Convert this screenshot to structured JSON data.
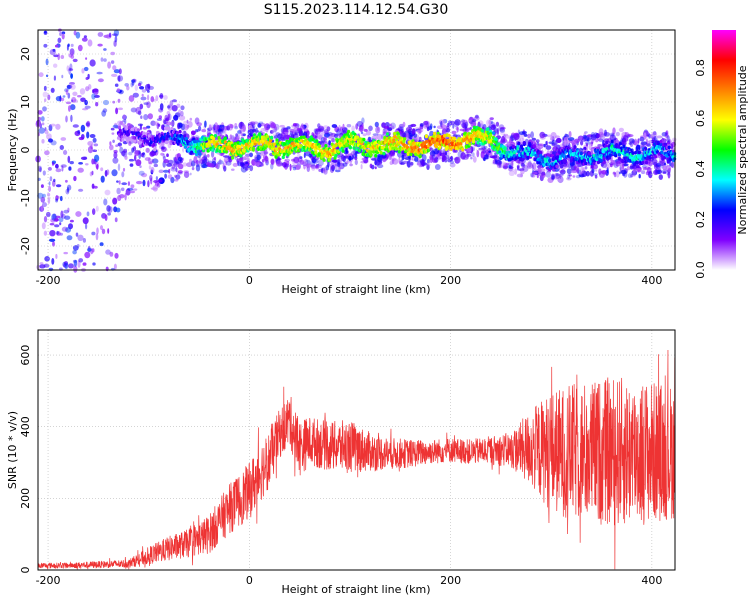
{
  "figure_title": "S115.2023.114.12.54.G30",
  "chart_data": [
    {
      "type": "heatmap",
      "title": "",
      "xlabel": "Height of straight line (km)",
      "ylabel": "Frequency (Hz)",
      "xlim": [
        -210,
        423
      ],
      "ylim": [
        -25,
        25
      ],
      "x_ticks": [
        -200,
        0,
        200,
        400
      ],
      "y_ticks": [
        -20,
        -10,
        0,
        10,
        20
      ],
      "colorbar": {
        "label": "Normalized spectral amplitude",
        "range": [
          0,
          0.95
        ],
        "ticks": [
          0.0,
          0.2,
          0.4,
          0.6,
          0.8
        ],
        "tick_labels": [
          "0.0",
          "0.2",
          "0.4",
          "0.6",
          "0.8"
        ],
        "colormap": [
          "#ffffff",
          "#8000ff",
          "#0000ff",
          "#00ffff",
          "#00ff00",
          "#ffff00",
          "#ff8000",
          "#ff0000",
          "#ff00ff"
        ]
      },
      "ridge": {
        "description": "Dominant signal frequency vs height",
        "x": [
          -120,
          -80,
          -60,
          -40,
          -20,
          0,
          20,
          40,
          60,
          80,
          100,
          120,
          140,
          160,
          180,
          200,
          220,
          240,
          260,
          280,
          300,
          320,
          340,
          360,
          380,
          400,
          420
        ],
        "freq": [
          3,
          2,
          1.5,
          1,
          0.5,
          1,
          1,
          1,
          0.5,
          0,
          1.5,
          1,
          1,
          1,
          1.2,
          1.5,
          2.5,
          2,
          -0.5,
          -1,
          -2,
          -1.5,
          -1,
          -0.5,
          -1,
          -0.5,
          -1
        ],
        "amplitude": [
          0.25,
          0.3,
          0.45,
          0.7,
          0.75,
          0.7,
          0.75,
          0.72,
          0.7,
          0.75,
          0.7,
          0.72,
          0.75,
          0.8,
          0.82,
          0.85,
          0.75,
          0.65,
          0.45,
          0.42,
          0.4,
          0.4,
          0.42,
          0.45,
          0.45,
          0.42,
          0.4
        ]
      }
    },
    {
      "type": "line",
      "title": "",
      "xlabel": "Height of straight line (km)",
      "ylabel": "SNR (10 * v/v)",
      "xlim": [
        -210,
        423
      ],
      "ylim": [
        0,
        670
      ],
      "x_ticks": [
        -200,
        0,
        200,
        400
      ],
      "y_ticks": [
        0,
        200,
        400,
        600
      ],
      "color": "#ee3333",
      "series": [
        {
          "name": "SNR",
          "x": [
            -210,
            -180,
            -150,
            -120,
            -100,
            -80,
            -60,
            -40,
            -20,
            0,
            10,
            20,
            30,
            40,
            50,
            60,
            80,
            100,
            120,
            140,
            160,
            180,
            200,
            220,
            240,
            260,
            280,
            300,
            320,
            340,
            360,
            380,
            400,
            420
          ],
          "mean": [
            12,
            13,
            15,
            18,
            40,
            60,
            75,
            100,
            170,
            220,
            270,
            310,
            380,
            420,
            340,
            360,
            345,
            345,
            330,
            325,
            325,
            330,
            335,
            330,
            335,
            335,
            340,
            330,
            330,
            330,
            330,
            330,
            330,
            330
          ],
          "spread": [
            8,
            8,
            10,
            12,
            25,
            35,
            40,
            55,
            70,
            80,
            85,
            80,
            70,
            75,
            80,
            70,
            70,
            75,
            55,
            45,
            40,
            35,
            35,
            35,
            40,
            50,
            110,
            170,
            190,
            200,
            210,
            210,
            200,
            190
          ]
        }
      ]
    }
  ]
}
